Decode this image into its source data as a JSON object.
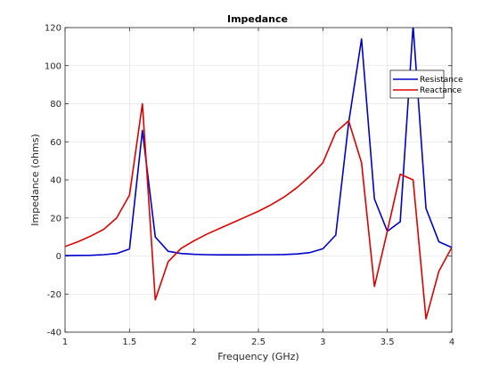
{
  "chart_data": {
    "type": "line",
    "title": "Impedance",
    "xlabel": "Frequency (GHz)",
    "ylabel": "Impedance (ohms)",
    "xlim": [
      1,
      4
    ],
    "ylim": [
      -40,
      120
    ],
    "xticks": [
      1,
      1.5,
      2,
      2.5,
      3,
      3.5,
      4
    ],
    "xtick_labels": [
      "1",
      "1.5",
      "2",
      "2.5",
      "3",
      "3.5",
      "4"
    ],
    "yticks": [
      -40,
      -20,
      0,
      20,
      40,
      60,
      80,
      100,
      120
    ],
    "ytick_labels": [
      "-40",
      "-20",
      "0",
      "20",
      "40",
      "60",
      "80",
      "100",
      "120"
    ],
    "grid": true,
    "legend_position": "top-right",
    "x": [
      1.0,
      1.1,
      1.2,
      1.3,
      1.4,
      1.5,
      1.6,
      1.7,
      1.8,
      1.9,
      2.0,
      2.1,
      2.2,
      2.3,
      2.4,
      2.5,
      2.6,
      2.7,
      2.8,
      2.9,
      3.0,
      3.1,
      3.2,
      3.3,
      3.4,
      3.5,
      3.6,
      3.7,
      3.8,
      3.9,
      4.0
    ],
    "series": [
      {
        "name": "Resistance",
        "color": "#0000cc",
        "values": [
          0.2,
          0.3,
          0.4,
          0.7,
          1.3,
          3.7,
          66,
          10,
          2.5,
          1.3,
          0.9,
          0.7,
          0.6,
          0.6,
          0.6,
          0.7,
          0.7,
          0.8,
          1.1,
          1.8,
          3.8,
          11,
          70,
          114,
          30,
          13,
          18,
          121,
          25,
          7.5,
          4.5
        ]
      },
      {
        "name": "Reactance",
        "color": "#dd0000",
        "values": [
          5,
          7.5,
          10.5,
          14,
          20,
          32,
          80,
          -23,
          -3,
          4,
          8,
          11.5,
          14.5,
          17.5,
          20.5,
          23.5,
          27,
          31,
          36,
          42,
          49,
          65,
          71,
          49,
          -16,
          13,
          43,
          40,
          -33,
          -8,
          4.5
        ]
      }
    ]
  }
}
